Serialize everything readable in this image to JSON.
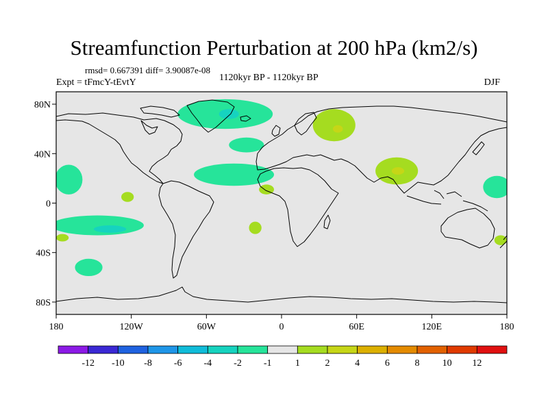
{
  "chart_data": {
    "type": "heatmap",
    "title": "Streamfunction Perturbation at 200 hPa (km2/s)",
    "stats_text": "rmsd= 0.667391 diff= 3.90087e-08",
    "left_subtitle": "Expt = tFmcY-tEvtY",
    "center_subtitle": "1120kyr BP - 1120kyr BP",
    "right_subtitle": "DJF",
    "xlim": [
      -180,
      180
    ],
    "ylim": [
      -90,
      90
    ],
    "x_ticks": [
      {
        "value": -180,
        "label": "180"
      },
      {
        "value": -120,
        "label": "120W"
      },
      {
        "value": -60,
        "label": "60W"
      },
      {
        "value": 0,
        "label": "0"
      },
      {
        "value": 60,
        "label": "60E"
      },
      {
        "value": 120,
        "label": "120E"
      },
      {
        "value": 180,
        "label": "180"
      }
    ],
    "y_ticks": [
      {
        "value": 80,
        "label": "80N"
      },
      {
        "value": 40,
        "label": "40N"
      },
      {
        "value": 0,
        "label": "0"
      },
      {
        "value": -40,
        "label": "40S"
      },
      {
        "value": -80,
        "label": "80S"
      }
    ],
    "colorbar": {
      "labels": [
        "-12",
        "-10",
        "-8",
        "-6",
        "-4",
        "-2",
        "-1",
        "1",
        "2",
        "4",
        "6",
        "8",
        "10",
        "12"
      ],
      "colors": [
        "#8c1ae6",
        "#3a28d4",
        "#1f62e0",
        "#1f96e8",
        "#10bcd9",
        "#16d3bf",
        "#26e49a",
        "#e6e6e6",
        "#a5dc20",
        "#c6d617",
        "#dcb000",
        "#e48b00",
        "#e26100",
        "#e03a00",
        "#e01010"
      ]
    },
    "anomalies": [
      {
        "name": "greenland-low",
        "lon": -45,
        "lat": 72,
        "rlon": 38,
        "rlat": 12,
        "color": "#26e49a",
        "core": {
          "lon": -42,
          "lat": 72,
          "rlon": 8,
          "rlat": 4,
          "color": "#16d3bf"
        }
      },
      {
        "name": "atlantic-low-north",
        "lon": -28,
        "lat": 47,
        "rlon": 14,
        "rlat": 6,
        "color": "#26e49a"
      },
      {
        "name": "atlantic-low-subtropic",
        "lon": -38,
        "lat": 23,
        "rlon": 32,
        "rlat": 9,
        "color": "#26e49a"
      },
      {
        "name": "west-africa-high",
        "lon": -12,
        "lat": 11,
        "rlon": 6,
        "rlat": 4,
        "color": "#a5dc20"
      },
      {
        "name": "scandinavia-high",
        "lon": 42,
        "lat": 63,
        "rlon": 17,
        "rlat": 13,
        "color": "#a5dc20",
        "core": {
          "lon": 45,
          "lat": 60,
          "rlon": 4,
          "rlat": 3,
          "color": "#c6d617"
        }
      },
      {
        "name": "tibet-high",
        "lon": 92,
        "lat": 26,
        "rlon": 17,
        "rlat": 11,
        "color": "#a5dc20",
        "core": {
          "lon": 93,
          "lat": 26,
          "rlon": 5,
          "rlat": 3,
          "color": "#c6d617"
        }
      },
      {
        "name": "north-pacific-low",
        "lon": -170,
        "lat": 19,
        "rlon": 11,
        "rlat": 12,
        "color": "#26e49a"
      },
      {
        "name": "south-pacific-low",
        "lon": -147,
        "lat": -18,
        "rlon": 37,
        "rlat": 8,
        "color": "#26e49a",
        "core": {
          "lon": -137,
          "lat": -21,
          "rlon": 13,
          "rlat": 3,
          "color": "#16d3bf"
        }
      },
      {
        "name": "east-pacific-high",
        "lon": -123,
        "lat": 5,
        "rlon": 5,
        "rlat": 4,
        "color": "#a5dc20"
      },
      {
        "name": "south-atlantic-high",
        "lon": -21,
        "lat": -20,
        "rlon": 5,
        "rlat": 5,
        "color": "#a5dc20"
      },
      {
        "name": "sw-pacific-high",
        "lon": -175,
        "lat": -28,
        "rlon": 5,
        "rlat": 3,
        "color": "#a5dc20"
      },
      {
        "name": "southern-ocean-low",
        "lon": -154,
        "lat": -52,
        "rlon": 11,
        "rlat": 7,
        "color": "#26e49a"
      },
      {
        "name": "west-pacific-low",
        "lon": 172,
        "lat": 13,
        "rlon": 11,
        "rlat": 9,
        "color": "#26e49a"
      },
      {
        "name": "tasman-high",
        "lon": 175,
        "lat": -30,
        "rlon": 5,
        "rlat": 4,
        "color": "#a5dc20"
      }
    ]
  }
}
